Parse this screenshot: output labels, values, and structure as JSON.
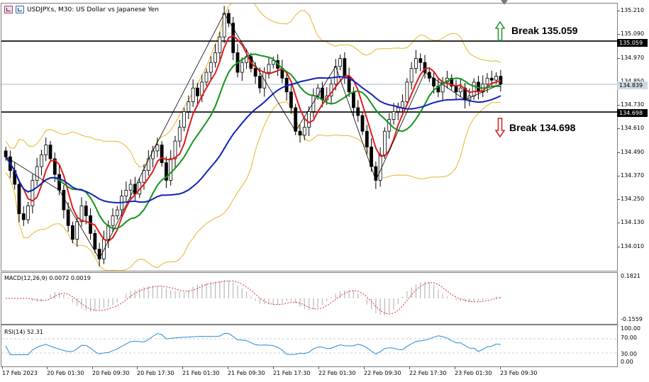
{
  "header": {
    "title": "USDJPY.s, M30:  US Dollar vs Japanese Yen",
    "icons": [
      "chart-window-icon",
      "chart-template-icon"
    ]
  },
  "levels": {
    "upper": {
      "label": "Break 135.059",
      "price_tag": "135.059",
      "price": 135.059
    },
    "lower": {
      "label": "Break 134.698",
      "price_tag": "134.698",
      "price": 134.698
    },
    "current": {
      "price_tag": "134.839",
      "price": 134.839
    }
  },
  "price_axis": {
    "ticks": [
      "135.210",
      "135.090",
      "134.970",
      "134.850",
      "134.730",
      "134.610",
      "134.490",
      "134.370",
      "134.250",
      "134.130",
      "134.010"
    ]
  },
  "macd": {
    "title": "MACD(12,26,9) 0.0072 0.0019",
    "axis": [
      "0.1821",
      "-0.1559"
    ]
  },
  "rsi": {
    "title": "RSI(14) 52.31",
    "axis": [
      "100.00",
      "70.00",
      "30.00",
      "0.00"
    ]
  },
  "time_axis": {
    "labels": [
      "17 Feb 2023",
      "20 Feb 01:30",
      "20 Feb 09:30",
      "20 Feb 17:30",
      "21 Feb 01:30",
      "21 Feb 09:30",
      "21 Feb 17:30",
      "22 Feb 01:30",
      "22 Feb 09:30",
      "22 Feb 17:30",
      "23 Feb 01:30",
      "23 Feb 09:30"
    ]
  },
  "colors": {
    "bull_arrow": "#2e9a3a",
    "bear_arrow": "#d02828",
    "ma_fast": "#e01b1b",
    "ma_mid": "#15931a",
    "ma_slow": "#1121b8",
    "bollinger": "#e6b52a",
    "zigzag": "#000000",
    "macd_signal": "#d03030",
    "rsi_line": "#2a8ad0"
  },
  "chart_data": {
    "type": "candlestick",
    "series_x": "bar index",
    "close": [
      134.47,
      134.4,
      134.33,
      134.18,
      134.15,
      134.22,
      134.35,
      134.42,
      134.48,
      134.53,
      134.46,
      134.38,
      134.3,
      134.2,
      134.12,
      134.05,
      134.14,
      134.22,
      134.17,
      134.08,
      134.0,
      133.95,
      134.05,
      134.12,
      134.17,
      134.2,
      134.27,
      134.3,
      134.33,
      134.28,
      134.34,
      134.4,
      134.46,
      134.5,
      134.53,
      134.44,
      134.35,
      134.46,
      134.55,
      134.62,
      134.7,
      134.75,
      134.82,
      134.78,
      134.85,
      134.9,
      134.95,
      135.0,
      135.08,
      135.2,
      135.15,
      135.0,
      134.9,
      134.95,
      134.98,
      134.92,
      134.88,
      134.82,
      134.9,
      134.94,
      134.96,
      134.92,
      134.87,
      134.8,
      134.72,
      134.6,
      134.58,
      134.62,
      134.7,
      134.78,
      134.82,
      134.76,
      134.78,
      134.84,
      134.93,
      134.97,
      134.88,
      134.8,
      134.72,
      134.68,
      134.6,
      134.52,
      134.42,
      134.35,
      134.48,
      134.6,
      134.66,
      134.7,
      134.72,
      134.75,
      134.85,
      134.92,
      134.97,
      134.95,
      134.9,
      134.87,
      134.83,
      134.8,
      134.85,
      134.87,
      134.83,
      134.8,
      134.82,
      134.76,
      134.78,
      134.85,
      134.8,
      134.84,
      134.87,
      134.86,
      134.88,
      134.84
    ],
    "ma_fast_pct": "estimated",
    "upper_level": 135.059,
    "lower_level": 134.698,
    "current_price": 134.839,
    "macd_first_value": 0.0072,
    "macd_second_value": 0.0019,
    "rsi_value": 52.31
  }
}
